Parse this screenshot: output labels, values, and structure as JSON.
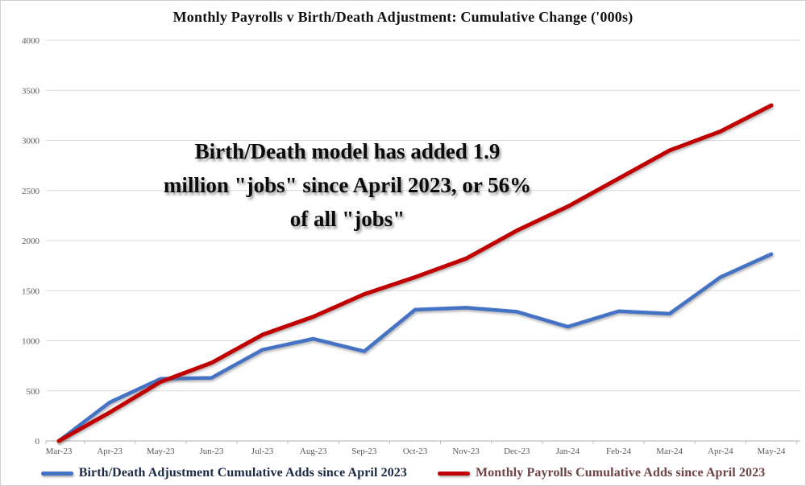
{
  "title": "Monthly Payrolls v Birth/Death Adjustment: Cumulative Change ('000s)",
  "annotation": {
    "line1": "Birth/Death model has added 1.9",
    "line2": "million \"jobs\" since April 2023, or 56%",
    "line3": "of all \"jobs\""
  },
  "colors": {
    "blue_line": "#4472C4",
    "red_line": "#C00000",
    "gridline": "#D9D9D9",
    "axis_line": "#BFBFBF",
    "axis_text": "#595959",
    "legend_blue_text": "#1B2A44",
    "legend_red_text": "#6E4444",
    "title_text": "#111111"
  },
  "chart_data": {
    "type": "line",
    "categories": [
      "Mar-23",
      "Apr-23",
      "May-23",
      "Jun-23",
      "Jul-23",
      "Aug-23",
      "Sep-23",
      "Oct-23",
      "Nov-23",
      "Dec-23",
      "Jan-24",
      "Feb-24",
      "Mar-24",
      "Apr-24",
      "May-24"
    ],
    "series": [
      {
        "name": "Birth/Death Adjustment Cumulative Adds since April 2023",
        "color": "#4472C4",
        "values": [
          0,
          385,
          620,
          630,
          910,
          1020,
          895,
          1310,
          1330,
          1290,
          1140,
          1295,
          1270,
          1635,
          1865
        ]
      },
      {
        "name": "Monthly Payrolls Cumulative Adds since April 2023",
        "color": "#C00000",
        "values": [
          0,
          285,
          590,
          780,
          1060,
          1240,
          1465,
          1635,
          1820,
          2100,
          2340,
          2620,
          2900,
          3090,
          3350
        ]
      }
    ],
    "title": "Monthly Payrolls v Birth/Death Adjustment: Cumulative Change ('000s)",
    "xlabel": "",
    "ylabel": "",
    "ylim": [
      0,
      4000
    ],
    "ytick_step": 500,
    "yticks": [
      0,
      500,
      1000,
      1500,
      2000,
      2500,
      3000,
      3500,
      4000
    ],
    "grid": true,
    "legend_position": "bottom"
  }
}
